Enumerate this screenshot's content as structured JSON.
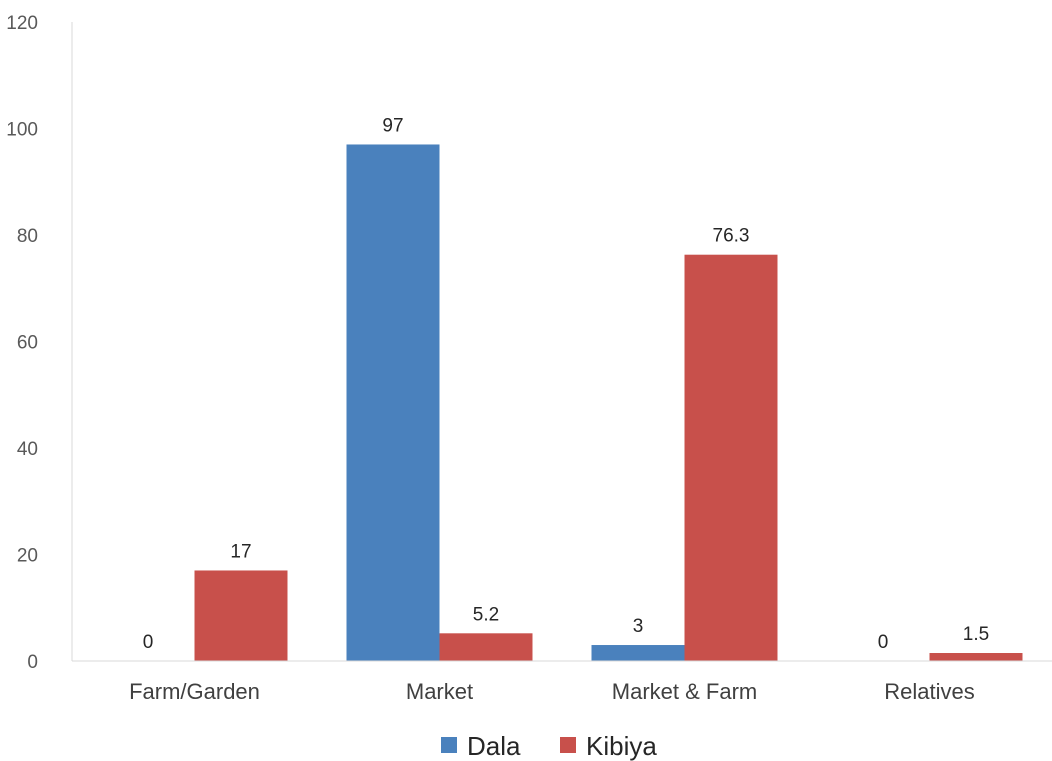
{
  "chart_data": {
    "type": "bar",
    "title": "",
    "xlabel": "",
    "ylabel": "",
    "categories": [
      "Farm/Garden",
      "Market",
      "Market & Farm",
      "Relatives"
    ],
    "series": [
      {
        "name": "Dala",
        "color": "#4a81bd",
        "values": [
          0,
          97,
          3,
          0
        ],
        "labels": [
          "0",
          "97",
          "3",
          "0"
        ]
      },
      {
        "name": "Kibiya",
        "color": "#c8504b",
        "values": [
          17,
          5.2,
          76.3,
          1.5
        ],
        "labels": [
          "17",
          "5.2",
          "76.3",
          "1.5"
        ]
      }
    ],
    "yticks": [
      0,
      20,
      40,
      60,
      80,
      100,
      120
    ],
    "ylim": [
      0,
      120
    ],
    "grid": false,
    "legend": "bottom-center"
  }
}
